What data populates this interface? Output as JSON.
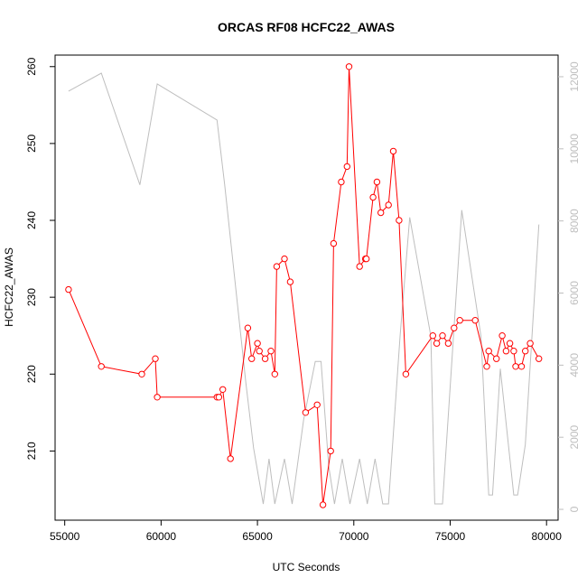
{
  "chart_data": {
    "type": "line",
    "title": "ORCAS RF08 HCFC22_AWAS",
    "xlabel": "UTC Seconds",
    "ylabel": "HCFC22_AWAS",
    "xlim": [
      54500,
      80600
    ],
    "ylim": [
      201.0,
      261.5
    ],
    "y2lim": [
      -300,
      12600
    ],
    "x_ticks": [
      55000,
      60000,
      65000,
      70000,
      75000,
      80000
    ],
    "y_ticks": [
      210,
      220,
      230,
      240,
      250,
      260
    ],
    "y2_ticks": [
      0,
      2000,
      4000,
      6000,
      8000,
      10000,
      12000
    ],
    "grid": false,
    "colors": {
      "primary": "#ff0000",
      "secondary": "#bebebe",
      "axis": "#000000"
    },
    "series": [
      {
        "marker": "open-circle",
        "x": [
          55200,
          56900,
          59000,
          59700,
          59800,
          62900,
          63000,
          63200,
          63600,
          64500,
          64700,
          65000,
          65100,
          65400,
          65700,
          65900,
          66000,
          66400,
          66700,
          67500,
          68100,
          68400,
          68800,
          68950,
          69350,
          69650,
          69750,
          70300,
          70600,
          70650,
          71000,
          71200,
          71400,
          71800,
          72050,
          72350,
          72700,
          74100,
          74300,
          74600,
          74900,
          75200,
          75500,
          76300,
          76900,
          77000,
          77400,
          77700,
          77900,
          78100,
          78300,
          78400,
          78700,
          78900,
          79150,
          79600
        ],
        "y": [
          231,
          221,
          220,
          222,
          217,
          217,
          217,
          218,
          209,
          226,
          222,
          224,
          223,
          222,
          223,
          220,
          234,
          235,
          232,
          215,
          216,
          203,
          210,
          237,
          245,
          247,
          260,
          234,
          235,
          235,
          243,
          245,
          241,
          242,
          249,
          240,
          220,
          225,
          224,
          225,
          224,
          226,
          227,
          227,
          221,
          223,
          222,
          225,
          223,
          224,
          223,
          221,
          221,
          223,
          224,
          222
        ]
      },
      {
        "axis": "right",
        "x": [
          55200,
          56900,
          58900,
          59800,
          62900,
          63300,
          64400,
          64800,
          65300,
          65600,
          65900,
          66400,
          66800,
          67400,
          68000,
          68300,
          68700,
          69000,
          69400,
          69800,
          70300,
          70700,
          71100,
          71500,
          71800,
          72400,
          72900,
          74000,
          74200,
          74600,
          75600,
          76600,
          77000,
          77200,
          77600,
          78300,
          78500,
          78900,
          79600
        ],
        "y": [
          11600,
          12100,
          9000,
          11800,
          10800,
          9000,
          3500,
          1700,
          150,
          1400,
          150,
          1400,
          150,
          2500,
          4100,
          4100,
          1200,
          150,
          1400,
          150,
          1400,
          150,
          1400,
          150,
          150,
          4800,
          8100,
          4800,
          150,
          150,
          8300,
          4800,
          400,
          400,
          3900,
          400,
          400,
          1800,
          7900
        ]
      }
    ]
  }
}
